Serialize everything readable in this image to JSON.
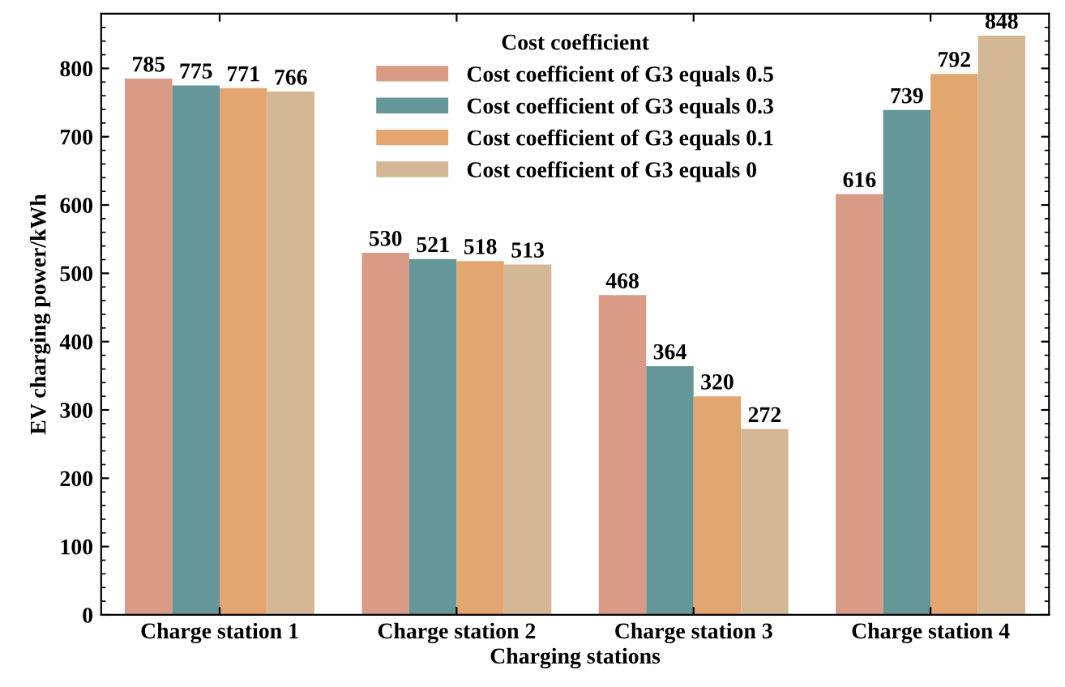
{
  "chart_data": {
    "type": "bar",
    "xlabel": "Charging stations",
    "ylabel": "EV charging power/kWh",
    "legend_title": "Cost coefficient",
    "categories": [
      "Charge station 1",
      "Charge station 2",
      "Charge station 3",
      "Charge station 4"
    ],
    "series": [
      {
        "name": "Cost coefficient of G3 equals 0.5",
        "color": "#d99b86",
        "values": [
          785,
          530,
          468,
          616
        ]
      },
      {
        "name": "Cost coefficient of G3 equals 0.3",
        "color": "#659698",
        "values": [
          775,
          521,
          364,
          739
        ]
      },
      {
        "name": "Cost coefficient of G3 equals 0.1",
        "color": "#e3a671",
        "values": [
          771,
          518,
          320,
          792
        ]
      },
      {
        "name": "Cost coefficient of G3 equals 0",
        "color": "#d4b794",
        "values": [
          766,
          513,
          272,
          848
        ]
      }
    ],
    "ylim": [
      0,
      880
    ],
    "yticks": [
      0,
      100,
      200,
      300,
      400,
      500,
      600,
      700,
      800
    ],
    "data_labels": true,
    "legend": "top",
    "grid": false
  }
}
